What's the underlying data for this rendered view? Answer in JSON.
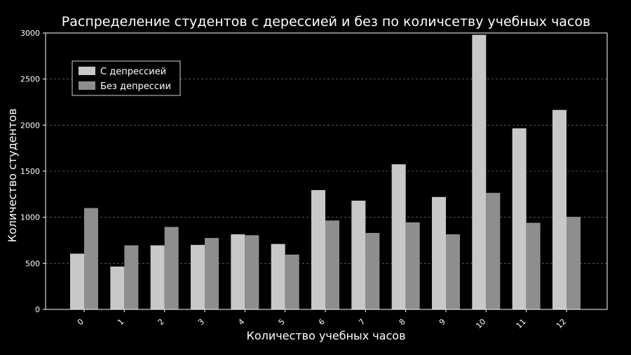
{
  "chart_data": {
    "type": "bar",
    "title": "Распределение студентов с дерессией и без по количсетву учебных часов",
    "xlabel": "Количество учебных часов",
    "ylabel": "Количество студентов",
    "categories": [
      "0",
      "1",
      "2",
      "3",
      "4",
      "5",
      "6",
      "7",
      "8",
      "9",
      "10",
      "11",
      "12"
    ],
    "series": [
      {
        "name": "С депрессией",
        "color": "#c8c8c8",
        "values": [
          605,
          465,
          695,
          700,
          815,
          710,
          1295,
          1180,
          1575,
          1220,
          2980,
          1965,
          2165
        ]
      },
      {
        "name": "Без депрессии",
        "color": "#8e8e8e",
        "values": [
          1100,
          695,
          895,
          775,
          805,
          595,
          965,
          830,
          945,
          815,
          1265,
          940,
          1005
        ]
      }
    ],
    "yticks": [
      "0",
      "500",
      "1000",
      "1500",
      "2000",
      "2500",
      "3000"
    ],
    "ylim": [
      0,
      3000
    ],
    "grid": true,
    "legend_position": "top-left"
  }
}
